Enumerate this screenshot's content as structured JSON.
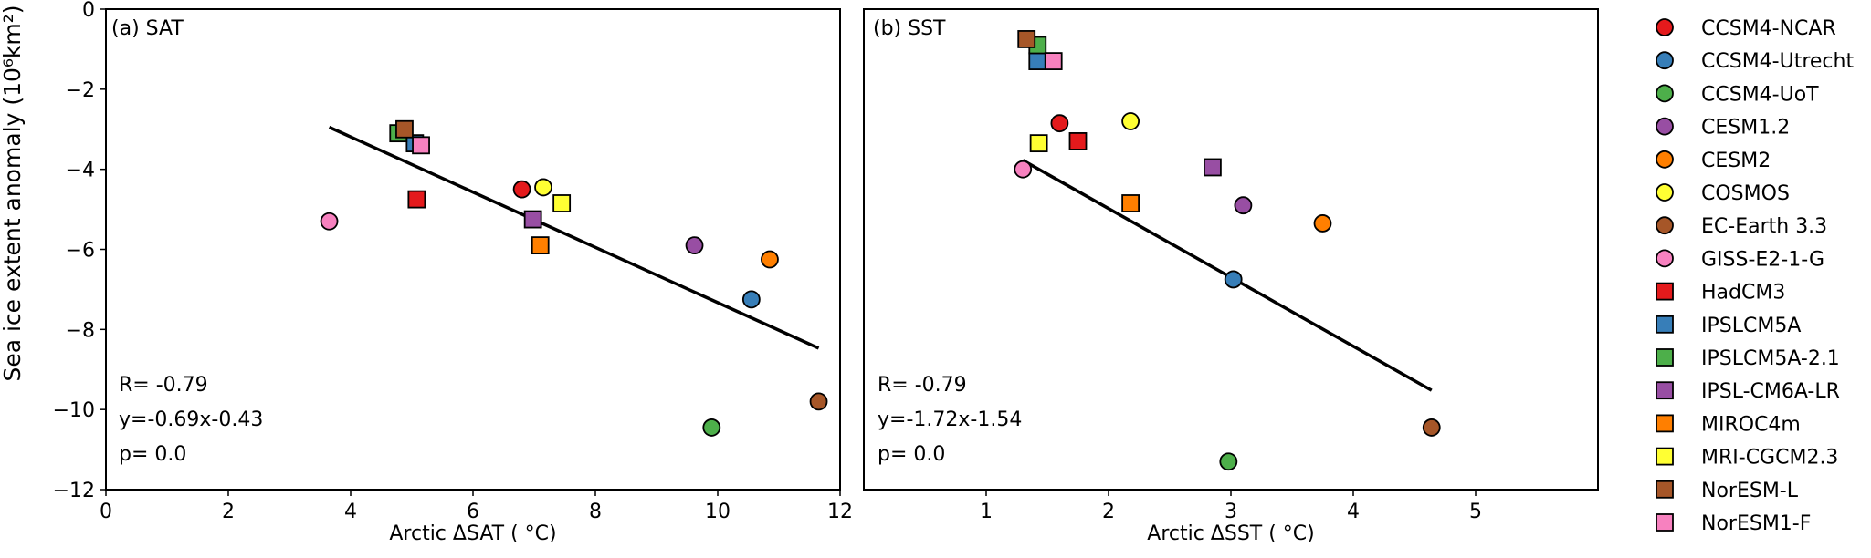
{
  "ylabel": "Sea ice extent anomaly (10⁶km²)",
  "legend": [
    {
      "name": "CCSM4-NCAR",
      "color": "#e41a1c",
      "marker": "circle"
    },
    {
      "name": "CCSM4-Utrecht",
      "color": "#377eb8",
      "marker": "circle"
    },
    {
      "name": "CCSM4-UoT",
      "color": "#4daf4a",
      "marker": "circle"
    },
    {
      "name": "CESM1.2",
      "color": "#984ea3",
      "marker": "circle"
    },
    {
      "name": "CESM2",
      "color": "#ff7f00",
      "marker": "circle"
    },
    {
      "name": "COSMOS",
      "color": "#ffff33",
      "marker": "circle"
    },
    {
      "name": "EC-Earth 3.3",
      "color": "#a65628",
      "marker": "circle"
    },
    {
      "name": "GISS-E2-1-G",
      "color": "#f781bf",
      "marker": "circle"
    },
    {
      "name": "HadCM3",
      "color": "#e41a1c",
      "marker": "square"
    },
    {
      "name": "IPSLCM5A",
      "color": "#377eb8",
      "marker": "square"
    },
    {
      "name": "IPSLCM5A-2.1",
      "color": "#4daf4a",
      "marker": "square"
    },
    {
      "name": "IPSL-CM6A-LR",
      "color": "#984ea3",
      "marker": "square"
    },
    {
      "name": "MIROC4m",
      "color": "#ff7f00",
      "marker": "square"
    },
    {
      "name": "MRI-CGCM2.3",
      "color": "#ffff33",
      "marker": "square"
    },
    {
      "name": "NorESM-L",
      "color": "#a65628",
      "marker": "square"
    },
    {
      "name": "NorESM1-F",
      "color": "#f781bf",
      "marker": "square"
    }
  ],
  "chart_data": [
    {
      "type": "scatter",
      "panel_label": "(a) SAT",
      "xlabel": "Arctic ΔSAT ( °C)",
      "ylabel": "Sea ice extent anomaly (10⁶km²)",
      "xlim": [
        0,
        12
      ],
      "ylim": [
        -12,
        0
      ],
      "xticks": [
        "0",
        "2",
        "4",
        "6",
        "8",
        "10",
        "12"
      ],
      "xtick_values": [
        0,
        2,
        4,
        6,
        8,
        10,
        12
      ],
      "yticks": [
        "0",
        "−2",
        "−4",
        "−6",
        "−8",
        "−10",
        "−12"
      ],
      "ytick_values": [
        0,
        -2,
        -4,
        -6,
        -8,
        -10,
        -12
      ],
      "stats": [
        "R= -0.79",
        "y=-0.69x-0.43",
        "p= 0.0"
      ],
      "fit": {
        "slope": -0.69,
        "intercept": -0.43,
        "x_range": [
          3.65,
          11.65
        ]
      },
      "points": [
        {
          "model": "CCSM4-NCAR",
          "x": 6.8,
          "y": -4.5
        },
        {
          "model": "CCSM4-Utrecht",
          "x": 10.55,
          "y": -7.25
        },
        {
          "model": "CCSM4-UoT",
          "x": 9.9,
          "y": -10.45
        },
        {
          "model": "CESM1.2",
          "x": 9.62,
          "y": -5.9
        },
        {
          "model": "CESM2",
          "x": 10.85,
          "y": -6.25
        },
        {
          "model": "COSMOS",
          "x": 7.15,
          "y": -4.45
        },
        {
          "model": "EC-Earth 3.3",
          "x": 11.65,
          "y": -9.8
        },
        {
          "model": "GISS-E2-1-G",
          "x": 3.65,
          "y": -5.3
        },
        {
          "model": "HadCM3",
          "x": 5.08,
          "y": -4.75
        },
        {
          "model": "IPSLCM5A",
          "x": 5.05,
          "y": -3.35
        },
        {
          "model": "IPSLCM5A-2.1",
          "x": 4.78,
          "y": -3.1
        },
        {
          "model": "IPSL-CM6A-LR",
          "x": 6.98,
          "y": -5.25
        },
        {
          "model": "MIROC4m",
          "x": 7.1,
          "y": -5.9
        },
        {
          "model": "MRI-CGCM2.3",
          "x": 7.45,
          "y": -4.85
        },
        {
          "model": "NorESM-L",
          "x": 4.88,
          "y": -3.0
        },
        {
          "model": "NorESM1-F",
          "x": 5.15,
          "y": -3.4
        }
      ]
    },
    {
      "type": "scatter",
      "panel_label": "(b) SST",
      "xlabel": "Arctic ΔSST ( °C)",
      "xlim": [
        0.0,
        6.0
      ],
      "ylim": [
        -12,
        0
      ],
      "xticks": [
        "1",
        "2",
        "3",
        "4",
        "5"
      ],
      "xtick_values": [
        1,
        2,
        3,
        4,
        5
      ],
      "stats": [
        "R= -0.79",
        "y=-1.72x-1.54",
        "p= 0.0"
      ],
      "fit": {
        "slope": -1.72,
        "intercept": -1.54,
        "x_range": [
          1.3,
          4.64
        ]
      },
      "points": [
        {
          "model": "CCSM4-NCAR",
          "x": 1.6,
          "y": -2.85
        },
        {
          "model": "CCSM4-Utrecht",
          "x": 3.02,
          "y": -6.75
        },
        {
          "model": "CCSM4-UoT",
          "x": 2.98,
          "y": -11.3
        },
        {
          "model": "CESM1.2",
          "x": 3.1,
          "y": -4.9
        },
        {
          "model": "CESM2",
          "x": 3.75,
          "y": -5.35
        },
        {
          "model": "COSMOS",
          "x": 2.18,
          "y": -2.8
        },
        {
          "model": "EC-Earth 3.3",
          "x": 4.64,
          "y": -10.45
        },
        {
          "model": "GISS-E2-1-G",
          "x": 1.3,
          "y": -4.0
        },
        {
          "model": "HadCM3",
          "x": 1.75,
          "y": -3.3
        },
        {
          "model": "IPSLCM5A",
          "x": 1.42,
          "y": -1.3
        },
        {
          "model": "IPSLCM5A-2.1",
          "x": 1.42,
          "y": -0.9
        },
        {
          "model": "IPSL-CM6A-LR",
          "x": 2.85,
          "y": -3.95
        },
        {
          "model": "MIROC4m",
          "x": 2.18,
          "y": -4.85
        },
        {
          "model": "MRI-CGCM2.3",
          "x": 1.43,
          "y": -3.35
        },
        {
          "model": "NorESM-L",
          "x": 1.33,
          "y": -0.75
        },
        {
          "model": "NorESM1-F",
          "x": 1.55,
          "y": -1.3
        }
      ]
    }
  ]
}
